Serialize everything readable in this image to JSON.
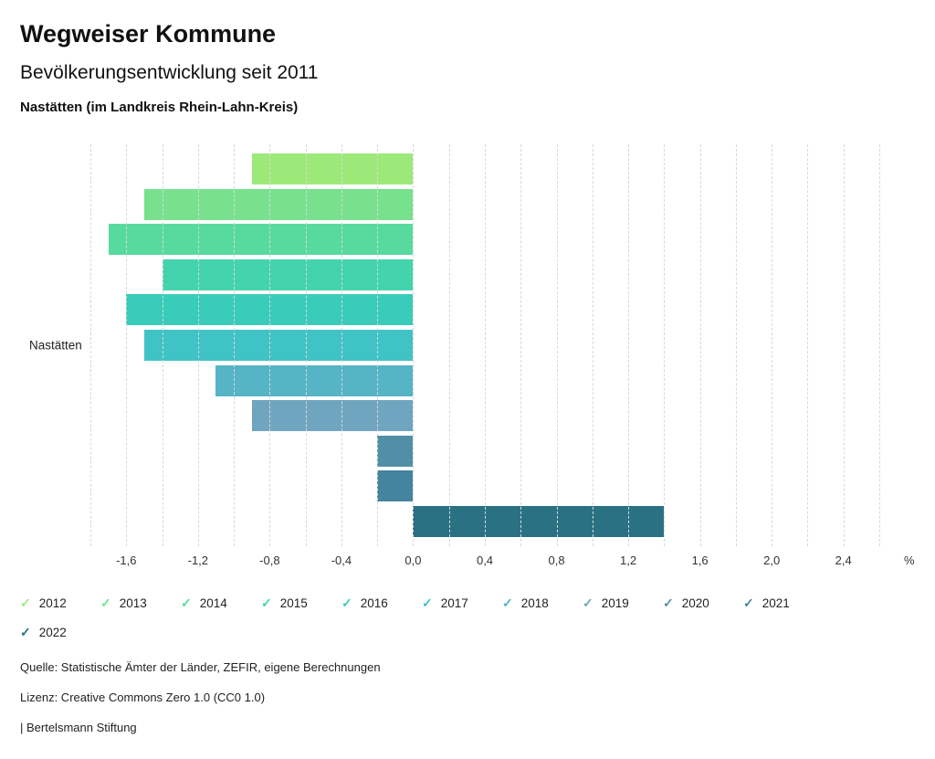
{
  "header": {
    "title": "Wegweiser Kommune",
    "subtitle": "Bevölkerungsentwicklung seit 2011",
    "location": "Nastätten (im Landkreis Rhein-Lahn-Kreis)"
  },
  "chart_data": {
    "type": "bar",
    "orientation": "horizontal",
    "group_label": "Nastätten",
    "categories": [
      "2012",
      "2013",
      "2014",
      "2015",
      "2016",
      "2017",
      "2018",
      "2019",
      "2020",
      "2021",
      "2022"
    ],
    "values": [
      -0.9,
      -1.5,
      -1.7,
      -1.4,
      -1.6,
      -1.5,
      -1.1,
      -0.9,
      -0.2,
      -0.2,
      1.4
    ],
    "colors": [
      "#9CE97A",
      "#77E18D",
      "#58DA9E",
      "#43D3AD",
      "#3ACCBA",
      "#40C3C4",
      "#55B4C5",
      "#70A5BF",
      "#518FA7",
      "#45849E",
      "#2A7184"
    ],
    "xlim": [
      -1.8,
      2.6
    ],
    "gridline_step": 0.2,
    "tick_values": [
      -1.6,
      -1.2,
      -0.8,
      -0.4,
      0,
      0.4,
      0.8,
      1.2,
      1.6,
      2.0,
      2.4
    ],
    "tick_labels": [
      "-1,6",
      "-1,2",
      "-0,8",
      "-0,4",
      "0,0",
      "0,4",
      "0,8",
      "1,2",
      "1,6",
      "2,0",
      "2,4"
    ],
    "unit": "%",
    "grid": true,
    "legend_position": "bottom",
    "legend_check_glyph": "✓"
  },
  "footer": {
    "source": "Quelle: Statistische Ämter der Länder, ZEFIR, eigene Berechnungen",
    "license": "Lizenz: Creative Commons Zero 1.0 (CC0 1.0)",
    "attribution": "| Bertelsmann Stiftung"
  }
}
